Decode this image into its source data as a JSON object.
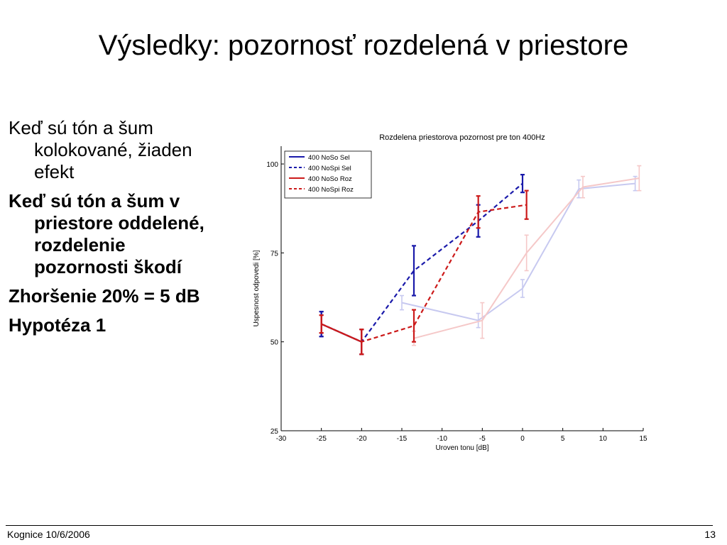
{
  "slide": {
    "title": "Výsledky: pozornosť rozdelená v priestore",
    "bullets": [
      {
        "text": "Keď sú tón a šum kolokované, žiaden efekt",
        "bold": false
      },
      {
        "text": "Keď sú tón a šum v priestore oddelené, rozdelenie pozornosti škodí",
        "bold": true
      },
      {
        "text": "Zhoršenie 20% = 5 dB",
        "bold": true
      },
      {
        "text": "Hypotéza 1",
        "bold": true
      }
    ],
    "footer_left": "Kognice 10/6/2006",
    "footer_right": "13"
  },
  "chart_data": {
    "type": "line",
    "title": "Rozdelena priestorova pozornost pre ton 400Hz",
    "xlabel": "Uroven tonu [dB]",
    "ylabel": "Uspesnost odpovedi [%]",
    "xlim": [
      -30,
      15
    ],
    "ylim": [
      25,
      105
    ],
    "xticks": [
      -30,
      -25,
      -20,
      -15,
      -10,
      -5,
      0,
      5,
      10,
      15
    ],
    "yticks": [
      25,
      50,
      75,
      100
    ],
    "legend_position": "top-left",
    "series": [
      {
        "name": "400 NoSo Sel",
        "color": "#1a1aaa",
        "dash": false,
        "faded": false,
        "x": [
          -25,
          -20
        ],
        "y": [
          55,
          50
        ],
        "err": [
          3.5,
          3.5
        ]
      },
      {
        "name": "400 NoSpi Sel",
        "color": "#1a1aaa",
        "dash": true,
        "faded": false,
        "x": [
          -25,
          -20,
          -13.5,
          -5.5,
          0
        ],
        "y": [
          55,
          50,
          70,
          84,
          94.5
        ],
        "err": [
          3.5,
          3.5,
          7,
          4.5,
          2.5
        ]
      },
      {
        "name": "400 NoSo Roz",
        "color": "#cc1a1a",
        "dash": false,
        "faded": false,
        "x": [
          -25,
          -20
        ],
        "y": [
          55,
          50
        ],
        "err": [
          2.5,
          3.5
        ]
      },
      {
        "name": "400 NoSpi Roz",
        "color": "#cc1a1a",
        "dash": true,
        "faded": false,
        "x": [
          -25,
          -20,
          -13.5,
          -5.5,
          0.5
        ],
        "y": [
          55,
          50,
          54.5,
          86.5,
          88.5
        ],
        "err": [
          2.5,
          3.5,
          4.5,
          4.5,
          4
        ]
      },
      {
        "name": "",
        "color": "#c7c9f0",
        "dash": false,
        "faded": true,
        "x": [
          -15,
          -5.5,
          0,
          7,
          14
        ],
        "y": [
          61,
          56,
          65,
          93,
          94.5
        ],
        "err": [
          2,
          2,
          2.5,
          2.5,
          2
        ]
      },
      {
        "name": "",
        "color": "#f5c8c8",
        "dash": false,
        "faded": true,
        "x": [
          -13.5,
          -5,
          0.5,
          7.5,
          14.5
        ],
        "y": [
          51,
          56,
          75,
          93.5,
          96
        ],
        "err": [
          2,
          5,
          5,
          3,
          3.5
        ]
      }
    ]
  }
}
